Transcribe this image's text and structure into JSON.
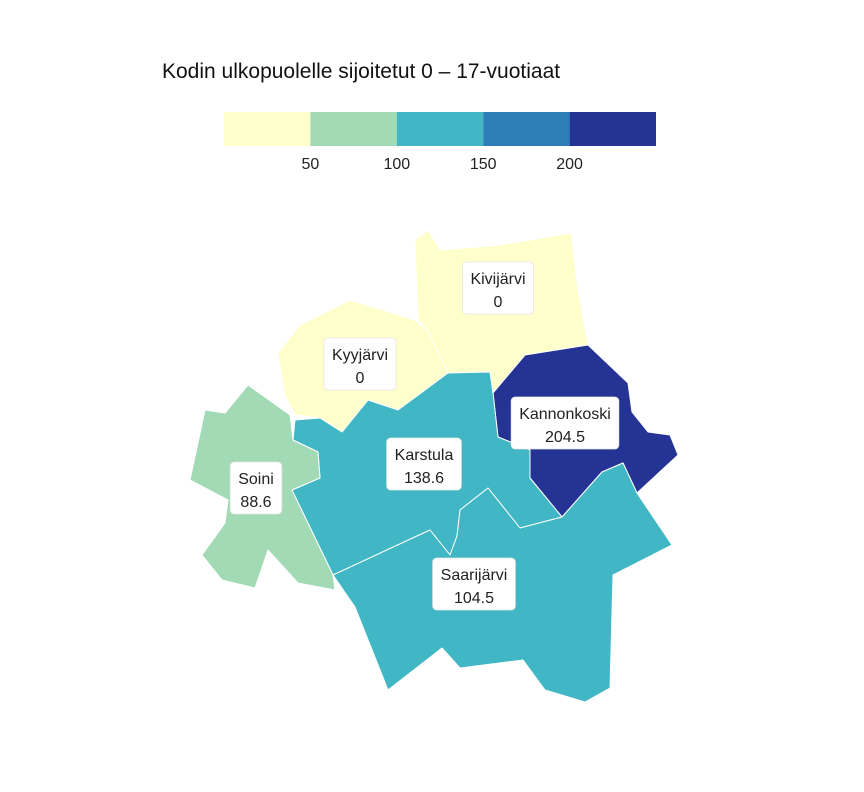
{
  "title": "Kodin ulkopuolelle sijoitetut 0 – 17-vuotiaat",
  "legend": {
    "bins": [
      {
        "min": 0,
        "max": 50,
        "color": "#ffffcc"
      },
      {
        "min": 50,
        "max": 100,
        "color": "#a1dab4"
      },
      {
        "min": 100,
        "max": 150,
        "color": "#41b6c4"
      },
      {
        "min": 150,
        "max": 200,
        "color": "#2c7fb8"
      },
      {
        "min": 200,
        "max": 250,
        "color": "#253494"
      }
    ],
    "tick_labels": [
      "50",
      "100",
      "150",
      "200"
    ]
  },
  "regions": [
    {
      "name": "Kivijärvi",
      "value": "0"
    },
    {
      "name": "Kyyjärvi",
      "value": "0"
    },
    {
      "name": "Kannonkoski",
      "value": "204.5"
    },
    {
      "name": "Karstula",
      "value": "138.6"
    },
    {
      "name": "Soini",
      "value": "88.6"
    },
    {
      "name": "Saarijärvi",
      "value": "104.5"
    }
  ]
}
